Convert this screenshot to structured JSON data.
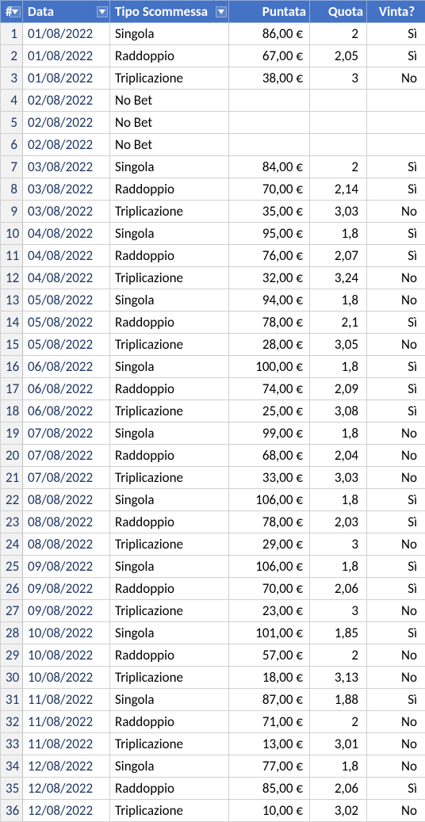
{
  "colors": {
    "header_bg": "#4472c4",
    "header_fg": "#ffffff",
    "row_border": "#d0d0d0",
    "rownum_bg": "#f2f2f2",
    "dark_text": "#1f3864"
  },
  "columns": {
    "rownum": "#",
    "data": "Data",
    "tipo": "Tipo Scommessa",
    "puntata": "Puntata",
    "quota": "Quota",
    "vinta": "Vinta?"
  },
  "rows": [
    {
      "n": "1",
      "data": "01/08/2022",
      "tipo": "Singola",
      "puntata": "86,00 €",
      "quota": "2",
      "vinta": "Sì"
    },
    {
      "n": "2",
      "data": "01/08/2022",
      "tipo": "Raddoppio",
      "puntata": "67,00 €",
      "quota": "2,05",
      "vinta": "Sì"
    },
    {
      "n": "3",
      "data": "01/08/2022",
      "tipo": "Triplicazione",
      "puntata": "38,00 €",
      "quota": "3",
      "vinta": "No"
    },
    {
      "n": "4",
      "data": "02/08/2022",
      "tipo": "No Bet",
      "puntata": "",
      "quota": "",
      "vinta": ""
    },
    {
      "n": "5",
      "data": "02/08/2022",
      "tipo": "No Bet",
      "puntata": "",
      "quota": "",
      "vinta": ""
    },
    {
      "n": "6",
      "data": "02/08/2022",
      "tipo": "No Bet",
      "puntata": "",
      "quota": "",
      "vinta": ""
    },
    {
      "n": "7",
      "data": "03/08/2022",
      "tipo": "Singola",
      "puntata": "84,00 €",
      "quota": "2",
      "vinta": "Sì"
    },
    {
      "n": "8",
      "data": "03/08/2022",
      "tipo": "Raddoppio",
      "puntata": "70,00 €",
      "quota": "2,14",
      "vinta": "Sì"
    },
    {
      "n": "9",
      "data": "03/08/2022",
      "tipo": "Triplicazione",
      "puntata": "35,00 €",
      "quota": "3,03",
      "vinta": "No"
    },
    {
      "n": "10",
      "data": "04/08/2022",
      "tipo": "Singola",
      "puntata": "95,00 €",
      "quota": "1,8",
      "vinta": "Sì"
    },
    {
      "n": "11",
      "data": "04/08/2022",
      "tipo": "Raddoppio",
      "puntata": "76,00 €",
      "quota": "2,07",
      "vinta": "Sì"
    },
    {
      "n": "12",
      "data": "04/08/2022",
      "tipo": "Triplicazione",
      "puntata": "32,00 €",
      "quota": "3,24",
      "vinta": "No"
    },
    {
      "n": "13",
      "data": "05/08/2022",
      "tipo": "Singola",
      "puntata": "94,00 €",
      "quota": "1,8",
      "vinta": "No"
    },
    {
      "n": "14",
      "data": "05/08/2022",
      "tipo": "Raddoppio",
      "puntata": "78,00 €",
      "quota": "2,1",
      "vinta": "Sì"
    },
    {
      "n": "15",
      "data": "05/08/2022",
      "tipo": "Triplicazione",
      "puntata": "28,00 €",
      "quota": "3,05",
      "vinta": "No"
    },
    {
      "n": "16",
      "data": "06/08/2022",
      "tipo": "Singola",
      "puntata": "100,00 €",
      "quota": "1,8",
      "vinta": "Sì"
    },
    {
      "n": "17",
      "data": "06/08/2022",
      "tipo": "Raddoppio",
      "puntata": "74,00 €",
      "quota": "2,09",
      "vinta": "Sì"
    },
    {
      "n": "18",
      "data": "06/08/2022",
      "tipo": "Triplicazione",
      "puntata": "25,00 €",
      "quota": "3,08",
      "vinta": "Sì"
    },
    {
      "n": "19",
      "data": "07/08/2022",
      "tipo": "Singola",
      "puntata": "99,00 €",
      "quota": "1,8",
      "vinta": "No"
    },
    {
      "n": "20",
      "data": "07/08/2022",
      "tipo": "Raddoppio",
      "puntata": "68,00 €",
      "quota": "2,04",
      "vinta": "No"
    },
    {
      "n": "21",
      "data": "07/08/2022",
      "tipo": "Triplicazione",
      "puntata": "33,00 €",
      "quota": "3,03",
      "vinta": "No"
    },
    {
      "n": "22",
      "data": "08/08/2022",
      "tipo": "Singola",
      "puntata": "106,00 €",
      "quota": "1,8",
      "vinta": "Sì"
    },
    {
      "n": "23",
      "data": "08/08/2022",
      "tipo": "Raddoppio",
      "puntata": "78,00 €",
      "quota": "2,03",
      "vinta": "Sì"
    },
    {
      "n": "24",
      "data": "08/08/2022",
      "tipo": "Triplicazione",
      "puntata": "29,00 €",
      "quota": "3",
      "vinta": "No"
    },
    {
      "n": "25",
      "data": "09/08/2022",
      "tipo": "Singola",
      "puntata": "106,00 €",
      "quota": "1,8",
      "vinta": "Sì"
    },
    {
      "n": "26",
      "data": "09/08/2022",
      "tipo": "Raddoppio",
      "puntata": "70,00 €",
      "quota": "2,06",
      "vinta": "Sì"
    },
    {
      "n": "27",
      "data": "09/08/2022",
      "tipo": "Triplicazione",
      "puntata": "23,00 €",
      "quota": "3",
      "vinta": "No"
    },
    {
      "n": "28",
      "data": "10/08/2022",
      "tipo": "Singola",
      "puntata": "101,00 €",
      "quota": "1,85",
      "vinta": "Sì"
    },
    {
      "n": "29",
      "data": "10/08/2022",
      "tipo": "Raddoppio",
      "puntata": "57,00 €",
      "quota": "2",
      "vinta": "No"
    },
    {
      "n": "30",
      "data": "10/08/2022",
      "tipo": "Triplicazione",
      "puntata": "18,00 €",
      "quota": "3,13",
      "vinta": "No"
    },
    {
      "n": "31",
      "data": "11/08/2022",
      "tipo": "Singola",
      "puntata": "87,00 €",
      "quota": "1,88",
      "vinta": "Sì"
    },
    {
      "n": "32",
      "data": "11/08/2022",
      "tipo": "Raddoppio",
      "puntata": "71,00 €",
      "quota": "2",
      "vinta": "No"
    },
    {
      "n": "33",
      "data": "11/08/2022",
      "tipo": "Triplicazione",
      "puntata": "13,00 €",
      "quota": "3,01",
      "vinta": "No"
    },
    {
      "n": "34",
      "data": "12/08/2022",
      "tipo": "Singola",
      "puntata": "77,00 €",
      "quota": "1,8",
      "vinta": "No"
    },
    {
      "n": "35",
      "data": "12/08/2022",
      "tipo": "Raddoppio",
      "puntata": "85,00 €",
      "quota": "2,06",
      "vinta": "Sì"
    },
    {
      "n": "36",
      "data": "12/08/2022",
      "tipo": "Triplicazione",
      "puntata": "10,00 €",
      "quota": "3,02",
      "vinta": "No"
    }
  ]
}
